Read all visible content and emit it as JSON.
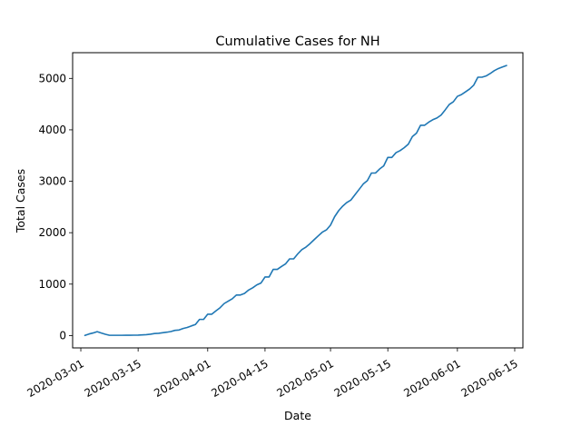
{
  "chart_data": {
    "type": "line",
    "title": "Cumulative Cases for NH",
    "xlabel": "Date",
    "ylabel": "Total Cases",
    "xlim": [
      "2020-02-28",
      "2020-06-17"
    ],
    "ylim": [
      -240,
      5500
    ],
    "grid": false,
    "x_ticks": [
      "2020-03-01",
      "2020-03-15",
      "2020-04-01",
      "2020-04-15",
      "2020-05-01",
      "2020-05-15",
      "2020-06-01",
      "2020-06-15"
    ],
    "y_ticks": [
      0,
      1000,
      2000,
      3000,
      4000,
      5000
    ],
    "series": [
      {
        "color": "#1f77b4",
        "points": [
          [
            "2020-03-02",
            2
          ],
          [
            "2020-03-03",
            30
          ],
          [
            "2020-03-04",
            50
          ],
          [
            "2020-03-05",
            75
          ],
          [
            "2020-03-06",
            50
          ],
          [
            "2020-03-07",
            25
          ],
          [
            "2020-03-08",
            5
          ],
          [
            "2020-03-09",
            5
          ],
          [
            "2020-03-10",
            5
          ],
          [
            "2020-03-11",
            5
          ],
          [
            "2020-03-12",
            6
          ],
          [
            "2020-03-13",
            6
          ],
          [
            "2020-03-14",
            7
          ],
          [
            "2020-03-15",
            8
          ],
          [
            "2020-03-16",
            13
          ],
          [
            "2020-03-17",
            17
          ],
          [
            "2020-03-18",
            26
          ],
          [
            "2020-03-19",
            39
          ],
          [
            "2020-03-20",
            44
          ],
          [
            "2020-03-21",
            55
          ],
          [
            "2020-03-22",
            65
          ],
          [
            "2020-03-23",
            78
          ],
          [
            "2020-03-24",
            101
          ],
          [
            "2020-03-25",
            108
          ],
          [
            "2020-03-26",
            137
          ],
          [
            "2020-03-27",
            158
          ],
          [
            "2020-03-28",
            187
          ],
          [
            "2020-03-29",
            214
          ],
          [
            "2020-03-30",
            314
          ],
          [
            "2020-03-31",
            314
          ],
          [
            "2020-04-01",
            415
          ],
          [
            "2020-04-02",
            415
          ],
          [
            "2020-04-03",
            479
          ],
          [
            "2020-04-04",
            540
          ],
          [
            "2020-04-05",
            621
          ],
          [
            "2020-04-06",
            669
          ],
          [
            "2020-04-07",
            715
          ],
          [
            "2020-04-08",
            788
          ],
          [
            "2020-04-09",
            788
          ],
          [
            "2020-04-10",
            819
          ],
          [
            "2020-04-11",
            885
          ],
          [
            "2020-04-12",
            929
          ],
          [
            "2020-04-13",
            985
          ],
          [
            "2020-04-14",
            1020
          ],
          [
            "2020-04-15",
            1139
          ],
          [
            "2020-04-16",
            1139
          ],
          [
            "2020-04-17",
            1287
          ],
          [
            "2020-04-18",
            1287
          ],
          [
            "2020-04-19",
            1342
          ],
          [
            "2020-04-20",
            1392
          ],
          [
            "2020-04-21",
            1491
          ],
          [
            "2020-04-22",
            1491
          ],
          [
            "2020-04-23",
            1588
          ],
          [
            "2020-04-24",
            1670
          ],
          [
            "2020-04-25",
            1720
          ],
          [
            "2020-04-26",
            1787
          ],
          [
            "2020-04-27",
            1864
          ],
          [
            "2020-04-28",
            1938
          ],
          [
            "2020-04-29",
            2010
          ],
          [
            "2020-04-30",
            2054
          ],
          [
            "2020-05-01",
            2146
          ],
          [
            "2020-05-02",
            2310
          ],
          [
            "2020-05-03",
            2429
          ],
          [
            "2020-05-04",
            2518
          ],
          [
            "2020-05-05",
            2588
          ],
          [
            "2020-05-06",
            2636
          ],
          [
            "2020-05-07",
            2740
          ],
          [
            "2020-05-08",
            2843
          ],
          [
            "2020-05-09",
            2947
          ],
          [
            "2020-05-10",
            3011
          ],
          [
            "2020-05-11",
            3160
          ],
          [
            "2020-05-12",
            3160
          ],
          [
            "2020-05-13",
            3239
          ],
          [
            "2020-05-14",
            3299
          ],
          [
            "2020-05-15",
            3464
          ],
          [
            "2020-05-16",
            3464
          ],
          [
            "2020-05-17",
            3556
          ],
          [
            "2020-05-18",
            3596
          ],
          [
            "2020-05-19",
            3652
          ],
          [
            "2020-05-20",
            3721
          ],
          [
            "2020-05-21",
            3868
          ],
          [
            "2020-05-22",
            3935
          ],
          [
            "2020-05-23",
            4089
          ],
          [
            "2020-05-24",
            4089
          ],
          [
            "2020-05-25",
            4149
          ],
          [
            "2020-05-26",
            4197
          ],
          [
            "2020-05-27",
            4231
          ],
          [
            "2020-05-28",
            4286
          ],
          [
            "2020-05-29",
            4386
          ],
          [
            "2020-05-30",
            4492
          ],
          [
            "2020-05-31",
            4545
          ],
          [
            "2020-06-01",
            4651
          ],
          [
            "2020-06-02",
            4685
          ],
          [
            "2020-06-03",
            4740
          ],
          [
            "2020-06-04",
            4795
          ],
          [
            "2020-06-05",
            4870
          ],
          [
            "2020-06-06",
            5023
          ],
          [
            "2020-06-07",
            5023
          ],
          [
            "2020-06-08",
            5047
          ],
          [
            "2020-06-09",
            5094
          ],
          [
            "2020-06-10",
            5150
          ],
          [
            "2020-06-11",
            5192
          ],
          [
            "2020-06-12",
            5221
          ],
          [
            "2020-06-13",
            5251
          ]
        ]
      }
    ]
  }
}
